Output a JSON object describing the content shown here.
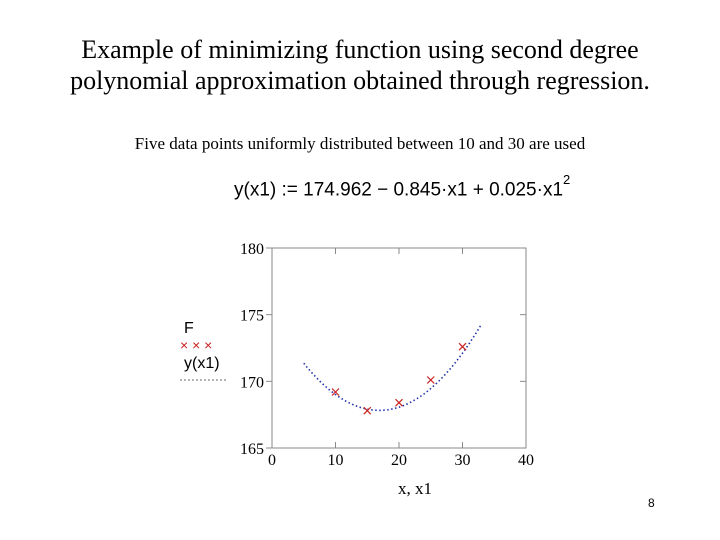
{
  "slide": {
    "title": "Example of minimizing function using second degree polynomial approximation obtained through regression.",
    "subtitle": "Five data points uniformly distributed between 10 and 30 are used",
    "formula_main": "y(x1) := 174.962 − 0.845·x1 + 0.025·x1",
    "formula_exp": "2",
    "page_number": "8"
  },
  "colors": {
    "points": "#cc2222",
    "curve": "#2233aa",
    "axes": "#888888",
    "grid": "#bbbbbb"
  },
  "chart_data": {
    "type": "scatter",
    "xlabel": "x, x1",
    "ylabel": "",
    "xlim": [
      0,
      40
    ],
    "ylim": [
      165,
      180
    ],
    "xticks": [
      "0",
      "10",
      "20",
      "30",
      "40"
    ],
    "yticks": [
      "165",
      "170",
      "175",
      "180"
    ],
    "legend": {
      "placement": "left",
      "entries": [
        {
          "label": "F",
          "marker": "× × ×"
        },
        {
          "label": "y(x1)",
          "marker": "dotted-line"
        }
      ]
    },
    "series": [
      {
        "name": "F",
        "kind": "points",
        "x": [
          10,
          15,
          20,
          25,
          30
        ],
        "y": [
          169.2,
          167.8,
          168.4,
          170.1,
          172.6
        ]
      },
      {
        "name": "y(x1)",
        "kind": "curve",
        "coefficients": [
          174.962,
          -0.845,
          0.025
        ],
        "x_range": [
          5,
          33
        ]
      }
    ]
  }
}
